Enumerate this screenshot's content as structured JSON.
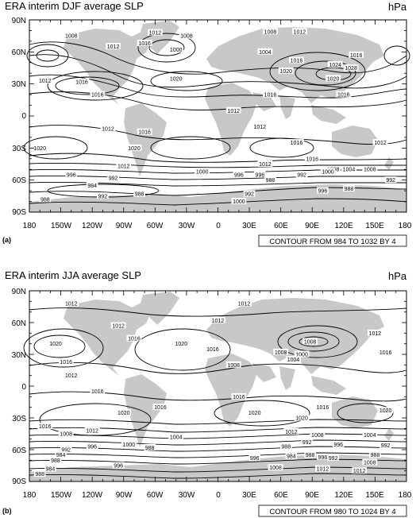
{
  "panels": [
    {
      "id": "a",
      "title": "ERA interim DJF average SLP",
      "units": "hPa",
      "panel_label": "(a)",
      "contour_info": "CONTOUR FROM 984 TO 1032 BY 4",
      "y_ticks": [
        "90N",
        "60N",
        "30N",
        "0",
        "30S",
        "60S",
        "90S"
      ],
      "x_ticks": [
        "180",
        "150W",
        "120W",
        "90W",
        "60W",
        "30W",
        "0",
        "30E",
        "60E",
        "90E",
        "120E",
        "150E",
        "180"
      ],
      "contour_labels": [
        {
          "text": "1012",
          "lon": -60,
          "lat": 78
        },
        {
          "text": "1008",
          "lon": -30,
          "lat": 75
        },
        {
          "text": "1008",
          "lon": 50,
          "lat": 79
        },
        {
          "text": "1012",
          "lon": 78,
          "lat": 79
        },
        {
          "text": "1008",
          "lon": -140,
          "lat": 75
        },
        {
          "text": "1016",
          "lon": -70,
          "lat": 68
        },
        {
          "text": "1012",
          "lon": -100,
          "lat": 65
        },
        {
          "text": "1000",
          "lon": -40,
          "lat": 62
        },
        {
          "text": "1004",
          "lon": 45,
          "lat": 60
        },
        {
          "text": "1016",
          "lon": 75,
          "lat": 52
        },
        {
          "text": "1012",
          "lon": -165,
          "lat": 33
        },
        {
          "text": "1016",
          "lon": -130,
          "lat": 32
        },
        {
          "text": "1016",
          "lon": -115,
          "lat": 20
        },
        {
          "text": "1020",
          "lon": 65,
          "lat": 42
        },
        {
          "text": "1024",
          "lon": 112,
          "lat": 48
        },
        {
          "text": "1020",
          "lon": 110,
          "lat": 35
        },
        {
          "text": "1016",
          "lon": 132,
          "lat": 57
        },
        {
          "text": "1028",
          "lon": 127,
          "lat": 45
        },
        {
          "text": "1020",
          "lon": -40,
          "lat": 35
        },
        {
          "text": "1016",
          "lon": 50,
          "lat": 20
        },
        {
          "text": "1012",
          "lon": 15,
          "lat": 5
        },
        {
          "text": "1016",
          "lon": 120,
          "lat": 20
        },
        {
          "text": "1012",
          "lon": -105,
          "lat": -12
        },
        {
          "text": "1016",
          "lon": -70,
          "lat": -15
        },
        {
          "text": "1012",
          "lon": 40,
          "lat": -10
        },
        {
          "text": "1016",
          "lon": 75,
          "lat": -25
        },
        {
          "text": "1020",
          "lon": -170,
          "lat": -30
        },
        {
          "text": "1020",
          "lon": -80,
          "lat": -30
        },
        {
          "text": "1012",
          "lon": 155,
          "lat": -25
        },
        {
          "text": "1016",
          "lon": 90,
          "lat": -40
        },
        {
          "text": "1012",
          "lon": -90,
          "lat": -47
        },
        {
          "text": "1012",
          "lon": 45,
          "lat": -45
        },
        {
          "text": "1008",
          "lon": 110,
          "lat": -50
        },
        {
          "text": "1000",
          "lon": -15,
          "lat": -52
        },
        {
          "text": "996",
          "lon": -140,
          "lat": -55
        },
        {
          "text": "992",
          "lon": -100,
          "lat": -58
        },
        {
          "text": "996",
          "lon": 20,
          "lat": -55
        },
        {
          "text": "996",
          "lon": 40,
          "lat": -55
        },
        {
          "text": "992",
          "lon": 80,
          "lat": -55
        },
        {
          "text": "1000",
          "lon": 105,
          "lat": -52
        },
        {
          "text": "1004",
          "lon": 125,
          "lat": -50
        },
        {
          "text": "1008",
          "lon": 145,
          "lat": -50
        },
        {
          "text": "992",
          "lon": 165,
          "lat": -60
        },
        {
          "text": "988",
          "lon": 50,
          "lat": -60
        },
        {
          "text": "984",
          "lon": -120,
          "lat": -65
        },
        {
          "text": "988",
          "lon": -75,
          "lat": -73
        },
        {
          "text": "992",
          "lon": -110,
          "lat": -75
        },
        {
          "text": "992",
          "lon": 30,
          "lat": -73
        },
        {
          "text": "988",
          "lon": 125,
          "lat": -68
        },
        {
          "text": "996",
          "lon": 100,
          "lat": -70
        },
        {
          "text": "1000",
          "lon": 20,
          "lat": -80
        },
        {
          "text": "988",
          "lon": -165,
          "lat": -78
        }
      ]
    },
    {
      "id": "b",
      "title": "ERA interim JJA average SLP",
      "units": "hPa",
      "panel_label": "(b)",
      "contour_info": "CONTOUR FROM 980 TO 1024 BY 4",
      "y_ticks": [
        "90N",
        "60N",
        "30N",
        "0",
        "30S",
        "60S",
        "90S"
      ],
      "x_ticks": [
        "180",
        "150W",
        "120W",
        "90W",
        "60W",
        "30W",
        "0",
        "30E",
        "60E",
        "90E",
        "120E",
        "150E",
        "180"
      ],
      "contour_labels": [
        {
          "text": "1012",
          "lon": -140,
          "lat": 78
        },
        {
          "text": "1012",
          "lon": 25,
          "lat": 78
        },
        {
          "text": "1012",
          "lon": 0,
          "lat": 62
        },
        {
          "text": "1012",
          "lon": -95,
          "lat": 57
        },
        {
          "text": "1020",
          "lon": -155,
          "lat": 40
        },
        {
          "text": "1016",
          "lon": -145,
          "lat": 23
        },
        {
          "text": "1016",
          "lon": -80,
          "lat": 45
        },
        {
          "text": "1020",
          "lon": -35,
          "lat": 40
        },
        {
          "text": "1016",
          "lon": -5,
          "lat": 35
        },
        {
          "text": "1008",
          "lon": 88,
          "lat": 42
        },
        {
          "text": "1008",
          "lon": 60,
          "lat": 32
        },
        {
          "text": "1000",
          "lon": 80,
          "lat": 30
        },
        {
          "text": "1004",
          "lon": 72,
          "lat": 25
        },
        {
          "text": "1008",
          "lon": 15,
          "lat": 20
        },
        {
          "text": "1012",
          "lon": 150,
          "lat": 50
        },
        {
          "text": "1016",
          "lon": 160,
          "lat": 32
        },
        {
          "text": "1012",
          "lon": -140,
          "lat": 10
        },
        {
          "text": "1016",
          "lon": -115,
          "lat": -5
        },
        {
          "text": "1016",
          "lon": 20,
          "lat": -10
        },
        {
          "text": "1020",
          "lon": -90,
          "lat": -25
        },
        {
          "text": "1016",
          "lon": -55,
          "lat": -20
        },
        {
          "text": "1020",
          "lon": 80,
          "lat": -30
        },
        {
          "text": "1020",
          "lon": 35,
          "lat": -25
        },
        {
          "text": "1016",
          "lon": 100,
          "lat": -20
        },
        {
          "text": "1020",
          "lon": 160,
          "lat": -23
        },
        {
          "text": "1016",
          "lon": -165,
          "lat": -38
        },
        {
          "text": "1012",
          "lon": -120,
          "lat": -42
        },
        {
          "text": "1008",
          "lon": -145,
          "lat": -45
        },
        {
          "text": "1004",
          "lon": -40,
          "lat": -48
        },
        {
          "text": "1012",
          "lon": 70,
          "lat": -43
        },
        {
          "text": "1008",
          "lon": 95,
          "lat": -46
        },
        {
          "text": "1004",
          "lon": 145,
          "lat": -46
        },
        {
          "text": "1000",
          "lon": -85,
          "lat": -55
        },
        {
          "text": "996",
          "lon": -120,
          "lat": -57
        },
        {
          "text": "992",
          "lon": -145,
          "lat": -60
        },
        {
          "text": "988",
          "lon": -65,
          "lat": -58
        },
        {
          "text": "992",
          "lon": 85,
          "lat": -53
        },
        {
          "text": "996",
          "lon": 115,
          "lat": -55
        },
        {
          "text": "992",
          "lon": 160,
          "lat": -56
        },
        {
          "text": "988",
          "lon": 65,
          "lat": -57
        },
        {
          "text": "984",
          "lon": -150,
          "lat": -65
        },
        {
          "text": "988",
          "lon": -155,
          "lat": -70
        },
        {
          "text": "984",
          "lon": -160,
          "lat": -78
        },
        {
          "text": "988",
          "lon": -170,
          "lat": -83
        },
        {
          "text": "996",
          "lon": -95,
          "lat": -75
        },
        {
          "text": "996",
          "lon": 35,
          "lat": -68
        },
        {
          "text": "984",
          "lon": 70,
          "lat": -66
        },
        {
          "text": "988",
          "lon": 88,
          "lat": -65
        },
        {
          "text": "996",
          "lon": 100,
          "lat": -67
        },
        {
          "text": "992",
          "lon": 110,
          "lat": -68
        },
        {
          "text": "1008",
          "lon": 55,
          "lat": -77
        },
        {
          "text": "1012",
          "lon": 100,
          "lat": -78
        },
        {
          "text": "1008",
          "lon": 145,
          "lat": -72
        },
        {
          "text": "1012",
          "lon": 135,
          "lat": -80
        },
        {
          "text": "988",
          "lon": 150,
          "lat": -65
        }
      ]
    }
  ],
  "colors": {
    "land": "#c8c8c8",
    "contour": "#000000",
    "frame": "#000000",
    "background": "#ffffff"
  }
}
